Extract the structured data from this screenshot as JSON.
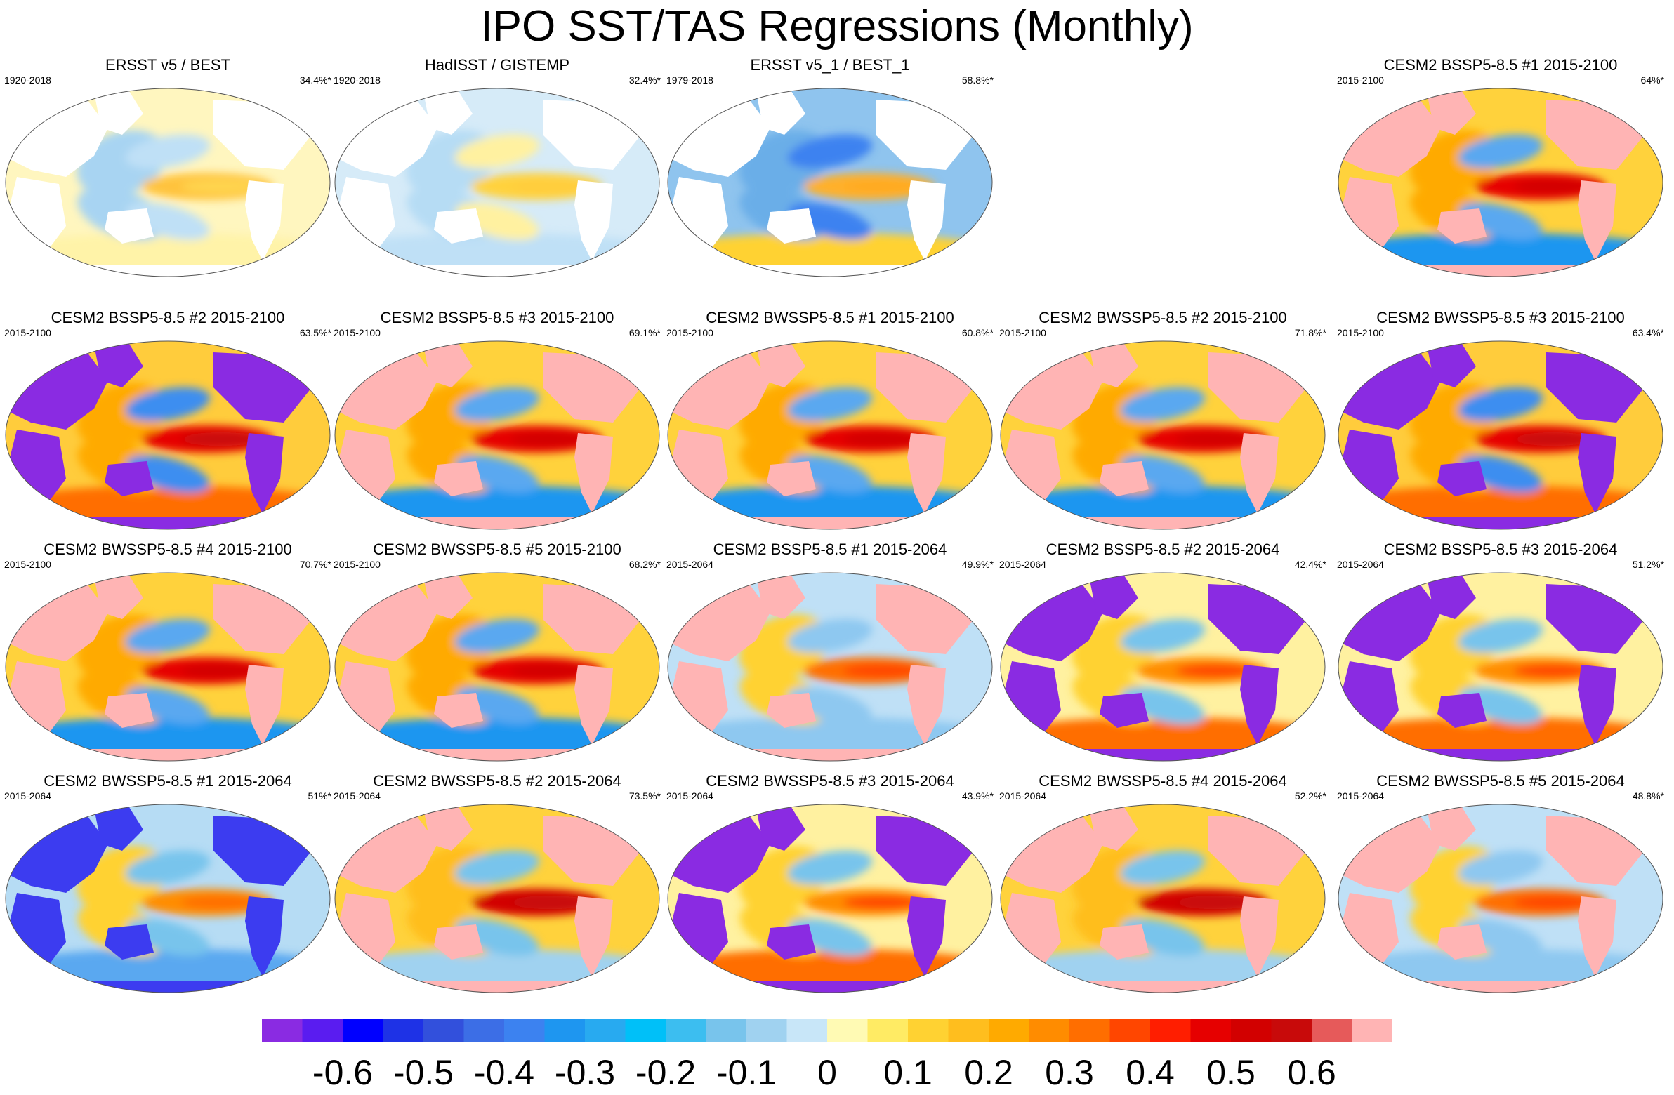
{
  "title": "IPO SST/TAS Regressions (Monthly)",
  "chart_data": {
    "type": "heatmap",
    "projection": "robinson, pacific-centered",
    "colors": {
      "land_color_top": "#ffb0b0",
      "coast": "#cfcfcf"
    },
    "panels": [
      {
        "id": "p1",
        "title": "ERSST v5 / BEST",
        "period": "1920-2018",
        "variance": "34.4%*",
        "style": "obs_ersst"
      },
      {
        "id": "p2",
        "title": "HadISST / GISTEMP",
        "period": "1920-2018",
        "variance": "32.4%*",
        "style": "obs_had"
      },
      {
        "id": "p3",
        "title": "ERSST v5_1 / BEST_1",
        "period": "1979-2018",
        "variance": "58.8%*",
        "style": "obs_ersst1"
      },
      {
        "id": "p5",
        "title": "CESM2 BSSP5-8.5 #1 2015-2100",
        "period": "2015-2100",
        "variance": "64%*",
        "style": "model_pink"
      },
      {
        "id": "p6",
        "title": "CESM2 BSSP5-8.5 #2 2015-2100",
        "period": "2015-2100",
        "variance": "63.5%*",
        "style": "model_purple"
      },
      {
        "id": "p7",
        "title": "CESM2 BSSP5-8.5 #3 2015-2100",
        "period": "2015-2100",
        "variance": "69.1%*",
        "style": "model_pink"
      },
      {
        "id": "p8",
        "title": "CESM2 BWSSP5-8.5 #1 2015-2100",
        "period": "2015-2100",
        "variance": "60.8%*",
        "style": "model_pink"
      },
      {
        "id": "p9",
        "title": "CESM2 BWSSP5-8.5 #2 2015-2100",
        "period": "2015-2100",
        "variance": "71.8%*",
        "style": "model_pink"
      },
      {
        "id": "p10",
        "title": "CESM2 BWSSP5-8.5 #3 2015-2100",
        "period": "2015-2100",
        "variance": "63.4%*",
        "style": "model_purple"
      },
      {
        "id": "p11",
        "title": "CESM2 BWSSP5-8.5 #4 2015-2100",
        "period": "2015-2100",
        "variance": "70.7%*",
        "style": "model_pink"
      },
      {
        "id": "p12",
        "title": "CESM2 BWSSP5-8.5 #5 2015-2100",
        "period": "2015-2100",
        "variance": "68.2%*",
        "style": "model_pink"
      },
      {
        "id": "p13",
        "title": "CESM2 BSSP5-8.5 #1 2015-2064",
        "period": "2015-2064",
        "variance": "49.9%*",
        "style": "model_pink_mild"
      },
      {
        "id": "p14",
        "title": "CESM2 BSSP5-8.5 #2 2015-2064",
        "period": "2015-2064",
        "variance": "42.4%*",
        "style": "model_purple_warm"
      },
      {
        "id": "p15",
        "title": "CESM2 BSSP5-8.5 #3 2015-2064",
        "period": "2015-2064",
        "variance": "51.2%*",
        "style": "model_purple_warm"
      },
      {
        "id": "p16",
        "title": "CESM2 BWSSP5-8.5 #1 2015-2064",
        "period": "2015-2064",
        "variance": "51%*",
        "style": "model_blue"
      },
      {
        "id": "p17",
        "title": "CESM2 BWSSP5-8.5 #2 2015-2064",
        "period": "2015-2064",
        "variance": "73.5%*",
        "style": "model_pink_red"
      },
      {
        "id": "p18",
        "title": "CESM2 BWSSP5-8.5 #3 2015-2064",
        "period": "2015-2064",
        "variance": "43.9%*",
        "style": "model_purple_warm"
      },
      {
        "id": "p19",
        "title": "CESM2 BWSSP5-8.5 #4 2015-2064",
        "period": "2015-2064",
        "variance": "52.2%*",
        "style": "model_pink_red"
      },
      {
        "id": "p20",
        "title": "CESM2 BWSSP5-8.5 #5 2015-2064",
        "period": "2015-2064",
        "variance": "48.8%*",
        "style": "model_pink_mild"
      }
    ],
    "colorbar": {
      "range": [
        -0.7,
        0.7
      ],
      "colors": [
        "#8a2be2",
        "#5a1cf0",
        "#0000ff",
        "#1e32e6",
        "#3250dc",
        "#3c6ee6",
        "#3c82f0",
        "#1e96f0",
        "#28aaf0",
        "#00c0f8",
        "#3cbef0",
        "#78c4ec",
        "#a0d2f0",
        "#c8e6f8",
        "#fffab4",
        "#ffeb64",
        "#ffd232",
        "#ffbe1e",
        "#ffaa00",
        "#ff8c00",
        "#ff6e00",
        "#ff4600",
        "#ff1e00",
        "#e60000",
        "#d20000",
        "#c80a0a",
        "#e65a5a",
        "#ffb4b4"
      ],
      "tick_labels": [
        "-0.6",
        "-0.5",
        "-0.4",
        "-0.3",
        "-0.2",
        "-0.1",
        "0",
        "0.1",
        "0.2",
        "0.3",
        "0.4",
        "0.5",
        "0.6"
      ],
      "tick_values": [
        -0.6,
        -0.5,
        -0.4,
        -0.3,
        -0.2,
        -0.1,
        0,
        0.1,
        0.2,
        0.3,
        0.4,
        0.5,
        0.6
      ]
    }
  }
}
